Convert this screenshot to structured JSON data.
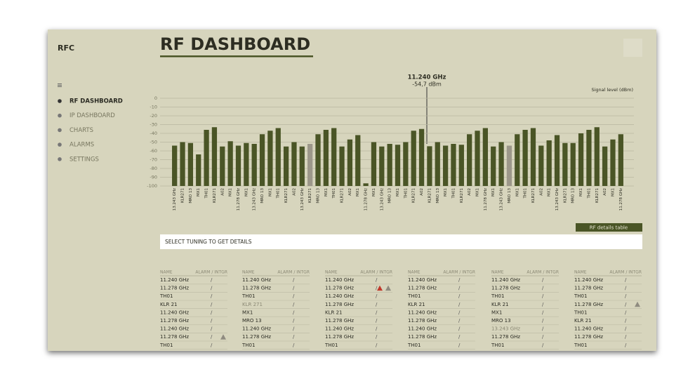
{
  "sidebar": {
    "brand": "RFC",
    "menu": [
      {
        "label": "RF DASHBOARD",
        "active": true
      },
      {
        "label": "IP DASHBOARD",
        "active": false
      },
      {
        "label": "CHARTS",
        "active": false
      },
      {
        "label": "ALARMS",
        "active": false
      },
      {
        "label": "SETTINGS",
        "active": false
      }
    ]
  },
  "header": {
    "title": "RF DASHBOARD"
  },
  "chart_data": {
    "type": "bar",
    "y_label": "Signal level (dBm)",
    "annotation": {
      "title": "11.240 GHz",
      "text": "-54,7 dBm"
    },
    "categories": [
      "13.243 GHz",
      "KLR271",
      "MRO 13",
      "MX1",
      "TH01",
      "KLR271",
      "A02",
      "MX1",
      "11.278 GHz",
      "MX1",
      "13.243 GHz",
      "MRO 13",
      "MX1",
      "TH01",
      "KLR271",
      "A02",
      "13.243 GHz",
      "KLR271",
      "MRO 13",
      "MX1",
      "TH01",
      "KLR271",
      "A02",
      "MX1",
      "11.278 GHz",
      "MX1",
      "13.243 GHz",
      "MRO 13",
      "MX1",
      "TH01",
      "KLR271",
      "A02",
      "KLR271",
      "MRO 13",
      "MX1",
      "TH01",
      "KLR271",
      "A02",
      "MX1",
      "11.278 GHz",
      "MX1",
      "13.243 GHz",
      "MRO 13",
      "MX1",
      "TH01",
      "KLR271",
      "A02",
      "MX1",
      "13.243 GHz",
      "KLR271",
      "MRO 13",
      "MX1",
      "TH01",
      "KLR271",
      "A02",
      "MX1",
      "11.278 GHz"
    ],
    "values": [
      -54,
      -50,
      -51,
      -64,
      -36,
      -33,
      -55,
      -49,
      -54,
      -51,
      -52,
      -41,
      -37,
      -34,
      -55,
      -50,
      -55,
      -52,
      -41,
      -36,
      -34,
      -55,
      -47,
      -42,
      -97,
      -50,
      -55,
      -52,
      -53,
      -50,
      -37,
      -35,
      -54.7,
      -50,
      -54,
      -52,
      -53,
      -41,
      -37,
      -34,
      -55,
      -50,
      -54,
      -41,
      -36,
      -34,
      -54,
      -48,
      -42,
      -51,
      -51,
      -40,
      -36,
      -33,
      -55,
      -47,
      -41
    ],
    "colors": [
      "#4a5526",
      "#4a5526",
      "#4a5526",
      "#4a5526",
      "#4a5526",
      "#4a5526",
      "#4a5526",
      "#4a5526",
      "#4a5526",
      "#4a5526",
      "#4a5526",
      "#4a5526",
      "#4a5526",
      "#4a5526",
      "#4a5526",
      "#4a5526",
      "#4a5526",
      "#9c978a",
      "#4a5526",
      "#4a5526",
      "#4a5526",
      "#4a5526",
      "#4a5526",
      "#4a5526",
      "#4a5526",
      "#4a5526",
      "#4a5526",
      "#4a5526",
      "#4a5526",
      "#4a5526",
      "#4a5526",
      "#4a5526",
      "#4a5526",
      "#4a5526",
      "#4a5526",
      "#4a5526",
      "#4a5526",
      "#4a5526",
      "#4a5526",
      "#4a5526",
      "#4a5526",
      "#4a5526",
      "#9c978a",
      "#4a5526",
      "#4a5526",
      "#4a5526",
      "#4a5526",
      "#4a5526",
      "#4a5526",
      "#4a5526",
      "#4a5526",
      "#4a5526",
      "#4a5526",
      "#4a5526",
      "#4a5526",
      "#4a5526",
      "#4a5526"
    ],
    "ylim": [
      -100,
      0
    ],
    "yticks": [
      0,
      -10,
      -20,
      -30,
      -40,
      -50,
      -60,
      -70,
      -80,
      -90,
      -100
    ],
    "grid": true
  },
  "button": "RF details table",
  "search": {
    "placeholder": "SELECT TUNING TO GET DETAILS"
  },
  "tables": [
    {
      "header": [
        "NAME",
        "ALARM / INTGR"
      ],
      "rows": [
        {
          "name": "11.240 GHz",
          "status": "/"
        },
        {
          "name": "11.278 GHz",
          "status": "/"
        },
        {
          "name": "TH01",
          "status": "/"
        },
        {
          "name": "KLR 21",
          "status": "/"
        },
        {
          "name": "11.240 GHz",
          "status": "/"
        },
        {
          "name": "11.278 GHz",
          "status": "/"
        },
        {
          "name": "11.240 GHz",
          "status": "/"
        },
        {
          "name": "11.278 GHz",
          "status": "/",
          "icons": [
            "#8f8b80"
          ]
        },
        {
          "name": "TH01",
          "status": "/"
        }
      ]
    },
    {
      "header": [
        "NAME",
        "ALARM / INTGR"
      ],
      "rows": [
        {
          "name": "11.240 GHz",
          "status": "/"
        },
        {
          "name": "11.278 GHz",
          "status": "/"
        },
        {
          "name": "TH01",
          "status": "/"
        },
        {
          "name": "KLR 271",
          "status": "/",
          "muted": true
        },
        {
          "name": "MX1",
          "status": "/"
        },
        {
          "name": "MRO 13",
          "status": "/"
        },
        {
          "name": "11.240 GHz",
          "status": "/"
        },
        {
          "name": "11.278 GHz",
          "status": "/"
        },
        {
          "name": "TH01",
          "status": "/"
        }
      ]
    },
    {
      "header": [
        "NAME",
        "ALARM / INTGR"
      ],
      "rows": [
        {
          "name": "11.240 GHz",
          "status": "/"
        },
        {
          "name": "11.278 GHz",
          "status": "/",
          "icons": [
            "#c0392b",
            "#8f8b80"
          ]
        },
        {
          "name": "11.240 GHz",
          "status": "/"
        },
        {
          "name": "11.278 GHz",
          "status": "/"
        },
        {
          "name": "KLR 21",
          "status": "/"
        },
        {
          "name": "11.278 GHz",
          "status": "/"
        },
        {
          "name": "11.240 GHz",
          "status": "/"
        },
        {
          "name": "11.278 GHz",
          "status": "/"
        },
        {
          "name": "TH01",
          "status": "/"
        }
      ]
    },
    {
      "header": [
        "NAME",
        "ALARM / INTGR"
      ],
      "rows": [
        {
          "name": "11.240 GHz",
          "status": "/"
        },
        {
          "name": "11.278 GHz",
          "status": "/"
        },
        {
          "name": "TH01",
          "status": "/"
        },
        {
          "name": "KLR 21",
          "status": "/"
        },
        {
          "name": "11.240 GHz",
          "status": "/"
        },
        {
          "name": "11.278 GHz",
          "status": "/"
        },
        {
          "name": "11.240 GHz",
          "status": "/"
        },
        {
          "name": "11.278 GHz",
          "status": "/"
        },
        {
          "name": "TH01",
          "status": "/"
        }
      ]
    },
    {
      "header": [
        "NAME",
        "ALARM / INTGR"
      ],
      "rows": [
        {
          "name": "11.240 GHz",
          "status": "/"
        },
        {
          "name": "11.278 GHz",
          "status": "/"
        },
        {
          "name": "TH01",
          "status": "/"
        },
        {
          "name": "KLR 21",
          "status": "/"
        },
        {
          "name": "MX1",
          "status": "/"
        },
        {
          "name": "MRO 13",
          "status": "/"
        },
        {
          "name": "13.243 GHz",
          "status": "/",
          "muted": true
        },
        {
          "name": "11.278 GHz",
          "status": "/"
        },
        {
          "name": "TH01",
          "status": "/"
        }
      ]
    },
    {
      "header": [
        "NAME",
        "ALARM / INTGR"
      ],
      "rows": [
        {
          "name": "11.240 GHz",
          "status": "/"
        },
        {
          "name": "11.278 GHz",
          "status": "/"
        },
        {
          "name": "TH01",
          "status": "/"
        },
        {
          "name": "11.278 GHz",
          "status": "/",
          "icons": [
            "#8f8b80"
          ]
        },
        {
          "name": "TH01",
          "status": "/"
        },
        {
          "name": "KLR 21",
          "status": "/"
        },
        {
          "name": "11.240 GHz",
          "status": "/"
        },
        {
          "name": "11.278 GHz",
          "status": "/"
        },
        {
          "name": "TH01",
          "status": "/"
        }
      ]
    }
  ]
}
